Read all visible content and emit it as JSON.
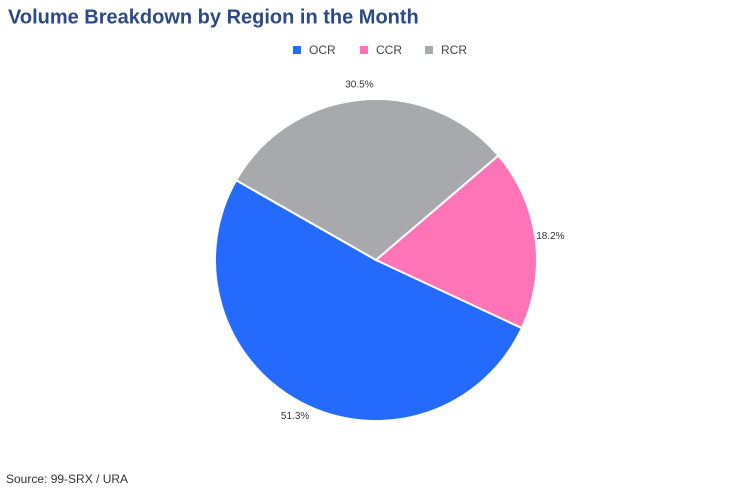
{
  "chart_data": {
    "type": "pie",
    "title": "Volume Breakdown by Region in the Month",
    "categories": [
      "OCR",
      "CCR",
      "RCR"
    ],
    "values": [
      51.3,
      18.2,
      30.5
    ],
    "value_labels": [
      "51.3%",
      "18.2%",
      "30.5%"
    ],
    "colors": [
      "#246bfd",
      "#ff73b7",
      "#a8a9ac"
    ],
    "source": "Source: 99-SRX / URA"
  }
}
